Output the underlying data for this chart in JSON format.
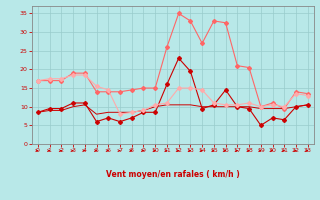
{
  "x": [
    0,
    1,
    2,
    3,
    4,
    5,
    6,
    7,
    8,
    9,
    10,
    11,
    12,
    13,
    14,
    15,
    16,
    17,
    18,
    19,
    20,
    21,
    22,
    23
  ],
  "series": [
    {
      "color": "#cc0000",
      "lw": 0.8,
      "marker": "P",
      "ms": 2.5,
      "y": [
        8.5,
        9.5,
        9.5,
        11.0,
        11.0,
        6.0,
        7.0,
        6.0,
        7.0,
        8.5,
        8.5,
        16.0,
        23.0,
        19.5,
        9.5,
        10.5,
        14.5,
        10.0,
        9.5,
        5.0,
        7.0,
        6.5,
        10.0,
        10.5
      ]
    },
    {
      "color": "#cc0000",
      "lw": 0.7,
      "marker": null,
      "ms": 0,
      "y": [
        8.5,
        9.0,
        9.0,
        10.0,
        10.5,
        8.0,
        8.5,
        8.5,
        8.5,
        9.0,
        10.0,
        10.5,
        10.5,
        10.5,
        10.0,
        10.0,
        10.0,
        10.0,
        10.0,
        9.5,
        9.5,
        9.5,
        10.0,
        10.5
      ]
    },
    {
      "color": "#ff6666",
      "lw": 0.8,
      "marker": "D",
      "ms": 2.0,
      "y": [
        17.0,
        17.0,
        17.0,
        19.0,
        19.0,
        14.0,
        14.0,
        14.0,
        14.5,
        15.0,
        15.0,
        26.0,
        35.0,
        33.0,
        27.0,
        33.0,
        32.5,
        21.0,
        20.5,
        10.0,
        11.0,
        9.5,
        14.0,
        13.5
      ]
    },
    {
      "color": "#ffaaaa",
      "lw": 0.8,
      "marker": "D",
      "ms": 2.0,
      "y": [
        17.0,
        17.5,
        17.5,
        18.5,
        18.5,
        15.5,
        14.5,
        8.0,
        8.5,
        9.0,
        10.5,
        11.0,
        15.0,
        15.0,
        14.5,
        11.0,
        10.5,
        10.5,
        11.0,
        10.0,
        10.5,
        10.0,
        13.5,
        13.0
      ]
    }
  ],
  "xlabel": "Vent moyen/en rafales ( km/h )",
  "xlim": [
    -0.5,
    23.5
  ],
  "ylim": [
    0,
    37
  ],
  "yticks": [
    0,
    5,
    10,
    15,
    20,
    25,
    30,
    35
  ],
  "xticks": [
    0,
    1,
    2,
    3,
    4,
    5,
    6,
    7,
    8,
    9,
    10,
    11,
    12,
    13,
    14,
    15,
    16,
    17,
    18,
    19,
    20,
    21,
    22,
    23
  ],
  "bg_color": "#b8e8e8",
  "grid_color": "#99cccc",
  "text_color": "#cc0000",
  "arrow_color": "#cc0000"
}
